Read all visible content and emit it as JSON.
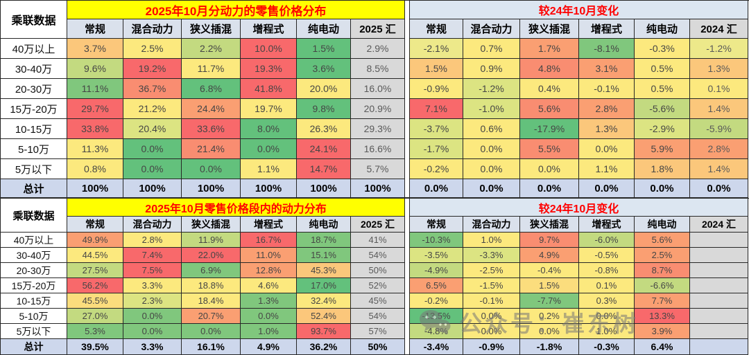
{
  "palette": {
    "r": "#F8696B",
    "o3": "#F98D71",
    "o2": "#FA9F72",
    "o1": "#FBC77B",
    "y2": "#FBDD7D",
    "y": "#FCE97E",
    "gy": "#EDE98A",
    "g4": "#DCE482",
    "g3": "#C3DA80",
    "g2": "#80C77D",
    "g1": "#63C17C",
    "gr": "#D9D9D9",
    "lav": "#CDD7EC"
  },
  "watermark": {
    "label": "公众号：崔东树",
    "icon": "wechat-icon"
  },
  "chart_data": {
    "type": "table",
    "source_label": "乘联数据",
    "tables": [
      {
        "corner": "乘联数据",
        "left_title": "2025年10月分动力的零售价格分布",
        "right_title": "较24年10月变化",
        "left_headers": [
          "常规",
          "混合动力",
          "狭义插混",
          "增程式",
          "纯电动",
          "2025 汇"
        ],
        "right_headers": [
          "常规",
          "混合动力",
          "狭义插混",
          "增程式",
          "纯电动",
          "2024 汇"
        ],
        "rows": [
          {
            "label": "40万以上",
            "cells": [
              [
                "3.7%",
                "o1"
              ],
              [
                "2.5%",
                "y"
              ],
              [
                "2.2%",
                "g3"
              ],
              [
                "10.0%",
                "r"
              ],
              [
                "1.5%",
                "g1"
              ],
              [
                "2.9%",
                "gr"
              ],
              [
                "-2.1%",
                "gy"
              ],
              [
                "0.7%",
                "y"
              ],
              [
                "1.7%",
                "o2"
              ],
              [
                "-8.1%",
                "g2"
              ],
              [
                "-0.3%",
                "y"
              ],
              [
                "-1.2%",
                "gy"
              ]
            ]
          },
          {
            "label": "30-40万",
            "cells": [
              [
                "9.6%",
                "g3"
              ],
              [
                "19.2%",
                "r"
              ],
              [
                "11.7%",
                "y"
              ],
              [
                "19.3%",
                "r"
              ],
              [
                "3.6%",
                "g1"
              ],
              [
                "8.5%",
                "gr"
              ],
              [
                "1.5%",
                "o1"
              ],
              [
                "0.9%",
                "y"
              ],
              [
                "4.8%",
                "o3"
              ],
              [
                "3.1%",
                "o2"
              ],
              [
                "0.5%",
                "y"
              ],
              [
                "1.3%",
                "o1"
              ]
            ]
          },
          {
            "label": "20-30万",
            "cells": [
              [
                "11.1%",
                "g2"
              ],
              [
                "36.7%",
                "o3"
              ],
              [
                "6.8%",
                "g1"
              ],
              [
                "41.8%",
                "r"
              ],
              [
                "20.0%",
                "y"
              ],
              [
                "16.0%",
                "gr"
              ],
              [
                "-0.9%",
                "y"
              ],
              [
                "-1.2%",
                "g4"
              ],
              [
                "0.4%",
                "y"
              ],
              [
                "-0.1%",
                "y"
              ],
              [
                "0.5%",
                "y"
              ],
              [
                "0.1%",
                "y"
              ]
            ]
          },
          {
            "label": "15万-20万",
            "cells": [
              [
                "29.7%",
                "r"
              ],
              [
                "21.2%",
                "y"
              ],
              [
                "24.4%",
                "o2"
              ],
              [
                "19.7%",
                "y"
              ],
              [
                "9.8%",
                "g1"
              ],
              [
                "20.9%",
                "gr"
              ],
              [
                "7.1%",
                "r"
              ],
              [
                "-1.0%",
                "g4"
              ],
              [
                "5.6%",
                "o3"
              ],
              [
                "2.8%",
                "o2"
              ],
              [
                "-5.6%",
                "g3"
              ],
              [
                "1.4%",
                "o1"
              ]
            ]
          },
          {
            "label": "10-15万",
            "cells": [
              [
                "33.8%",
                "r"
              ],
              [
                "20.4%",
                "g4"
              ],
              [
                "33.6%",
                "r"
              ],
              [
                "8.0%",
                "g1"
              ],
              [
                "26.3%",
                "y"
              ],
              [
                "29.3%",
                "gr"
              ],
              [
                "-3.7%",
                "g4"
              ],
              [
                "0.6%",
                "y"
              ],
              [
                "-17.9%",
                "g1"
              ],
              [
                "1.3%",
                "o1"
              ],
              [
                "-2.9%",
                "g4"
              ],
              [
                "-5.9%",
                "g3"
              ]
            ]
          },
          {
            "label": "5-10万",
            "cells": [
              [
                "11.3%",
                "y"
              ],
              [
                "0.0%",
                "g1"
              ],
              [
                "21.4%",
                "o3"
              ],
              [
                "0.0%",
                "g1"
              ],
              [
                "24.1%",
                "r"
              ],
              [
                "16.6%",
                "gr"
              ],
              [
                "-1.7%",
                "g4"
              ],
              [
                "0.0%",
                "y"
              ],
              [
                "5.5%",
                "o3"
              ],
              [
                "0.0%",
                "y"
              ],
              [
                "5.9%",
                "o2"
              ],
              [
                "2.8%",
                "o2"
              ]
            ]
          },
          {
            "label": "5万以下",
            "cells": [
              [
                "0.8%",
                "y"
              ],
              [
                "0.0%",
                "g1"
              ],
              [
                "0.0%",
                "g1"
              ],
              [
                "1.1%",
                "y"
              ],
              [
                "14.7%",
                "r"
              ],
              [
                "5.7%",
                "gr"
              ],
              [
                "-0.2%",
                "y"
              ],
              [
                "0.0%",
                "y"
              ],
              [
                "0.0%",
                "y"
              ],
              [
                "1.1%",
                "y"
              ],
              [
                "1.8%",
                "o1"
              ],
              [
                "1.4%",
                "o1"
              ]
            ]
          },
          {
            "label": "总计",
            "total": true,
            "cells": [
              [
                "100%",
                "lav"
              ],
              [
                "100%",
                "lav"
              ],
              [
                "100%",
                "lav"
              ],
              [
                "100%",
                "lav"
              ],
              [
                "100%",
                "lav"
              ],
              [
                "100%",
                "lav"
              ],
              [
                "0.0%",
                "lav"
              ],
              [
                "0.0%",
                "lav"
              ],
              [
                "0.0%",
                "lav"
              ],
              [
                "0.0%",
                "lav"
              ],
              [
                "0.0%",
                "lav"
              ],
              [
                "0.0%",
                "lav"
              ]
            ]
          }
        ]
      },
      {
        "corner": "乘联数据",
        "left_title": "2025年10月零售价格段内的动力分布",
        "right_title": "较24年10月变化",
        "left_headers": [
          "常规",
          "混合动力",
          "狭义插混",
          "增程式",
          "纯电动",
          "2025 汇"
        ],
        "right_headers": [
          "常规",
          "混合动力",
          "狭义插混",
          "增程式",
          "纯电动",
          "2024 汇"
        ],
        "rows": [
          {
            "label": "40万以上",
            "cells": [
              [
                "49.9%",
                "o2"
              ],
              [
                "2.8%",
                "y"
              ],
              [
                "11.9%",
                "g3"
              ],
              [
                "16.7%",
                "r"
              ],
              [
                "18.7%",
                "g2"
              ],
              [
                "41%",
                "gr"
              ],
              [
                "-10.3%",
                "g2"
              ],
              [
                "1.0%",
                "y"
              ],
              [
                "9.7%",
                "o3"
              ],
              [
                "-6.0%",
                "g3"
              ],
              [
                "5.6%",
                "o2"
              ],
              [
                "",
                "gr"
              ]
            ]
          },
          {
            "label": "30-40万",
            "cells": [
              [
                "44.5%",
                "y"
              ],
              [
                "7.4%",
                "r"
              ],
              [
                "22.0%",
                "r"
              ],
              [
                "11.0%",
                "o2"
              ],
              [
                "15.1%",
                "g2"
              ],
              [
                "54%",
                "gr"
              ],
              [
                "-3.5%",
                "g4"
              ],
              [
                "-3.3%",
                "g4"
              ],
              [
                "4.9%",
                "o2"
              ],
              [
                "-0.5%",
                "y"
              ],
              [
                "2.5%",
                "o2"
              ],
              [
                "",
                "gr"
              ]
            ]
          },
          {
            "label": "20-30万",
            "cells": [
              [
                "27.5%",
                "g3"
              ],
              [
                "7.5%",
                "r"
              ],
              [
                "6.9%",
                "g2"
              ],
              [
                "12.8%",
                "o2"
              ],
              [
                "45.3%",
                "o1"
              ],
              [
                "50%",
                "gr"
              ],
              [
                "-4.9%",
                "g3"
              ],
              [
                "-2.5%",
                "y"
              ],
              [
                "-0.4%",
                "y"
              ],
              [
                "-0.8%",
                "y"
              ],
              [
                "8.7%",
                "o3"
              ],
              [
                "",
                "gr"
              ]
            ]
          },
          {
            "label": "15万-20万",
            "cells": [
              [
                "56.2%",
                "r"
              ],
              [
                "3.3%",
                "y"
              ],
              [
                "18.8%",
                "y"
              ],
              [
                "4.6%",
                "y"
              ],
              [
                "17.0%",
                "g1"
              ],
              [
                "52%",
                "gr"
              ],
              [
                "6.5%",
                "o2"
              ],
              [
                "-1.5%",
                "y"
              ],
              [
                "1.5%",
                "y2"
              ],
              [
                "0.1%",
                "y"
              ],
              [
                "-6.6%",
                "g3"
              ],
              [
                "",
                "gr"
              ]
            ]
          },
          {
            "label": "10-15万",
            "cells": [
              [
                "45.5%",
                "y2"
              ],
              [
                "2.3%",
                "g4"
              ],
              [
                "18.4%",
                "y"
              ],
              [
                "1.3%",
                "g2"
              ],
              [
                "32.4%",
                "y"
              ],
              [
                "45%",
                "gr"
              ],
              [
                "-0.2%",
                "y"
              ],
              [
                "-0.1%",
                "y"
              ],
              [
                "-7.7%",
                "g2"
              ],
              [
                "0.3%",
                "y"
              ],
              [
                "7.7%",
                "o2"
              ],
              [
                "",
                "gr"
              ]
            ]
          },
          {
            "label": "5-10万",
            "cells": [
              [
                "27.0%",
                "g3"
              ],
              [
                "0.0%",
                "g2"
              ],
              [
                "20.7%",
                "o2"
              ],
              [
                "0.0%",
                "g2"
              ],
              [
                "52.4%",
                "o1"
              ],
              [
                "54%",
                "gr"
              ],
              [
                "-13.5%",
                "g1"
              ],
              [
                "0.0%",
                "y"
              ],
              [
                "0.2%",
                "y"
              ],
              [
                "0.0%",
                "y"
              ],
              [
                "13.3%",
                "r"
              ],
              [
                "",
                "gr"
              ]
            ]
          },
          {
            "label": "5万以下",
            "cells": [
              [
                "5.3%",
                "g2"
              ],
              [
                "0.0%",
                "g2"
              ],
              [
                "0.0%",
                "g2"
              ],
              [
                "1.0%",
                "g2"
              ],
              [
                "93.7%",
                "r"
              ],
              [
                "57%",
                "gr"
              ],
              [
                "-4.8%",
                "g3"
              ],
              [
                "0.0%",
                "y"
              ],
              [
                "0.0%",
                "y"
              ],
              [
                "1.0%",
                "y"
              ],
              [
                "3.9%",
                "o2"
              ],
              [
                "",
                "gr"
              ]
            ]
          },
          {
            "label": "总计",
            "total": true,
            "cells": [
              [
                "39.5%",
                "lav"
              ],
              [
                "3.3%",
                "lav"
              ],
              [
                "16.1%",
                "lav"
              ],
              [
                "4.9%",
                "lav"
              ],
              [
                "36.2%",
                "lav"
              ],
              [
                "50%",
                "lav"
              ],
              [
                "-3.4%",
                "lav"
              ],
              [
                "-0.9%",
                "lav"
              ],
              [
                "-1.8%",
                "lav"
              ],
              [
                "-0.3%",
                "lav"
              ],
              [
                "6.4%",
                "lav"
              ],
              [
                "",
                "lav"
              ]
            ]
          }
        ]
      }
    ]
  }
}
